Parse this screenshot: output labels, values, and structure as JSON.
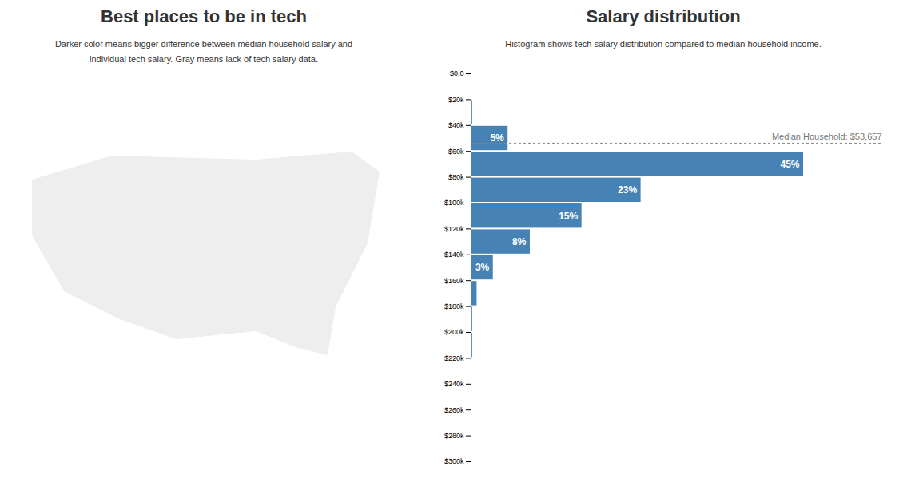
{
  "chart_data": [
    {
      "type": "map",
      "title": "Best places to be in tech",
      "subtitle": "Darker color means bigger difference between median household salary and individual tech salary. Gray means lack of tech salary data."
    },
    {
      "type": "histogram",
      "title": "Salary distribution",
      "subtitle": "Histogram shows tech salary distribution compared to median household income.",
      "orientation": "horizontal",
      "bins": [
        0,
        20000,
        40000,
        60000,
        80000,
        100000,
        120000,
        140000,
        160000,
        180000,
        200000,
        220000
      ],
      "values": [
        0,
        0.2,
        5,
        45,
        23,
        15,
        8,
        3,
        0.8,
        0.2,
        0.2
      ],
      "value_labels": [
        null,
        null,
        "5%",
        "45%",
        "23%",
        "15%",
        "8%",
        "3%",
        null,
        null,
        null
      ],
      "data_labels": true,
      "color": "#4682b4",
      "xlim": [
        0,
        55.6
      ],
      "ylim": [
        0,
        300000
      ],
      "yticks": [
        {
          "value": 0,
          "label": "$0.0"
        },
        {
          "value": 20000,
          "label": "$20k"
        },
        {
          "value": 40000,
          "label": "$40k"
        },
        {
          "value": 60000,
          "label": "$60k"
        },
        {
          "value": 80000,
          "label": "$80k"
        },
        {
          "value": 100000,
          "label": "$100k"
        },
        {
          "value": 120000,
          "label": "$120k"
        },
        {
          "value": 140000,
          "label": "$140k"
        },
        {
          "value": 160000,
          "label": "$160k"
        },
        {
          "value": 180000,
          "label": "$180k"
        },
        {
          "value": 200000,
          "label": "$200k"
        },
        {
          "value": 220000,
          "label": "$220k"
        },
        {
          "value": 240000,
          "label": "$240k"
        },
        {
          "value": 260000,
          "label": "$260k"
        },
        {
          "value": 280000,
          "label": "$280k"
        },
        {
          "value": 300000,
          "label": "$300k"
        }
      ],
      "tick_labels": "y",
      "grid": false,
      "annotations": [
        {
          "value": 53657,
          "label": "Median Household: $53,657",
          "line_style": "dashed"
        }
      ]
    }
  ]
}
